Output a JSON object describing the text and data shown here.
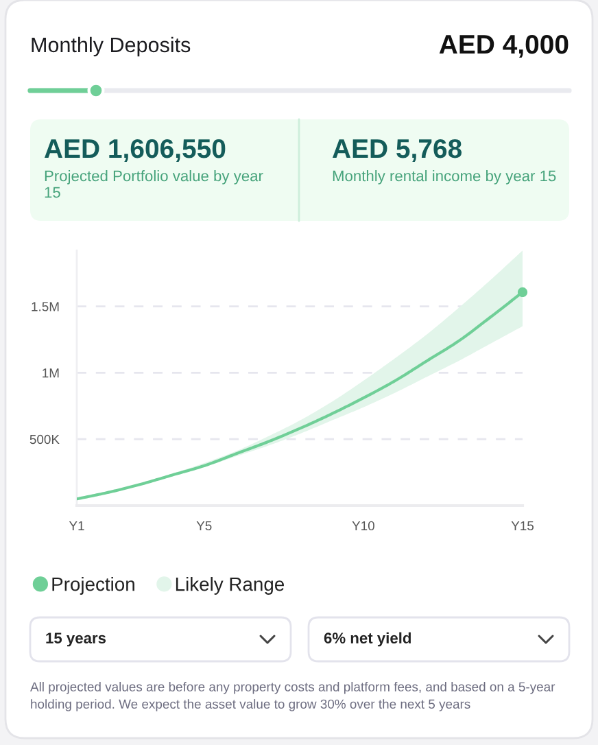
{
  "chart_data": {
    "type": "line",
    "categories": [
      "Y1",
      null,
      null,
      null,
      "Y5",
      null,
      null,
      null,
      null,
      "Y10",
      null,
      null,
      null,
      null,
      "Y15"
    ],
    "series": [
      {
        "name": "Projection",
        "color": "#6fcf97",
        "values": [
          50000,
          100000,
          160000,
          230000,
          300000,
          390000,
          480000,
          580000,
          690000,
          810000,
          940000,
          1090000,
          1240000,
          1420000,
          1606550
        ],
        "lower": [
          50000,
          100000,
          160000,
          220000,
          290000,
          370000,
          450000,
          540000,
          640000,
          740000,
          850000,
          970000,
          1090000,
          1220000,
          1350000
        ],
        "upper": [
          50000,
          100000,
          160000,
          240000,
          320000,
          410000,
          520000,
          640000,
          780000,
          940000,
          1110000,
          1290000,
          1490000,
          1700000,
          1920000
        ]
      },
      {
        "type": "scatter",
        "color": "#6fcf97",
        "values": [
          null,
          null,
          null,
          null,
          null,
          null,
          null,
          null,
          null,
          null,
          null,
          null,
          null,
          null,
          1606550
        ]
      }
    ],
    "ylim": [
      0,
      1920000
    ],
    "yticks": [
      {
        "value": 500000,
        "label": "500K"
      },
      {
        "value": 1000000,
        "label": "1M"
      },
      {
        "value": 1500000,
        "label": "1.5M"
      }
    ],
    "grid": "y",
    "legend": "bottom left",
    "annotations": [
      "Monthly Deposits",
      "AED 4,000",
      "AED 1,606,550",
      "Projected Portfolio value by year 15",
      "AED 5,768",
      "Monthly rental income by year 15",
      "Likely Range",
      "15 years",
      "6% net yield",
      "All projected values are before any property costs and platform fees, and based on a 5-year holding period. We expect the asset value to grow 30% over the next 5 years"
    ]
  }
}
